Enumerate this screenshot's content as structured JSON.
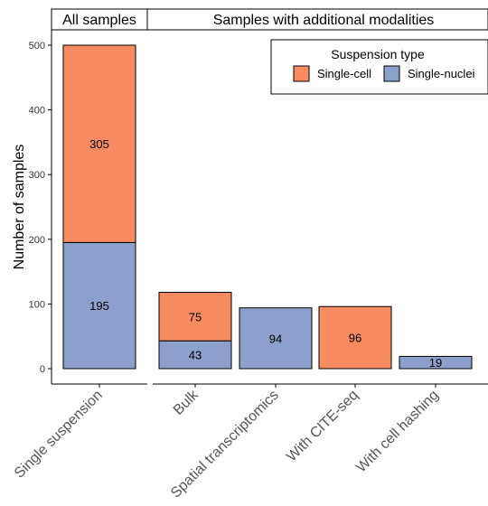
{
  "chart_data": {
    "type": "bar",
    "stacked": true,
    "ylabel": "Number of samples",
    "ylim": [
      0,
      500
    ],
    "yticks": [
      0,
      100,
      200,
      300,
      400,
      500
    ],
    "grid": false,
    "legend": {
      "title": "Suspension type",
      "placement": "top-right",
      "entries": [
        "Single-cell",
        "Single-nuclei"
      ]
    },
    "colors": {
      "Single-cell": "#f78c62",
      "Single-nuclei": "#8da0cb"
    },
    "panels": [
      {
        "label": "All samples",
        "categories": [
          "Single suspension"
        ]
      },
      {
        "label": "Samples with additional modalities",
        "categories": [
          "Bulk",
          "Spatial transcriptomics",
          "With CITE-seq",
          "With cell hashing"
        ]
      }
    ],
    "categories": [
      "Single suspension",
      "Bulk",
      "Spatial transcriptomics",
      "With CITE-seq",
      "With cell hashing"
    ],
    "series": [
      {
        "name": "Single-nuclei",
        "values": [
          195,
          43,
          94,
          0,
          19
        ]
      },
      {
        "name": "Single-cell",
        "values": [
          305,
          75,
          0,
          96,
          0
        ]
      }
    ]
  }
}
